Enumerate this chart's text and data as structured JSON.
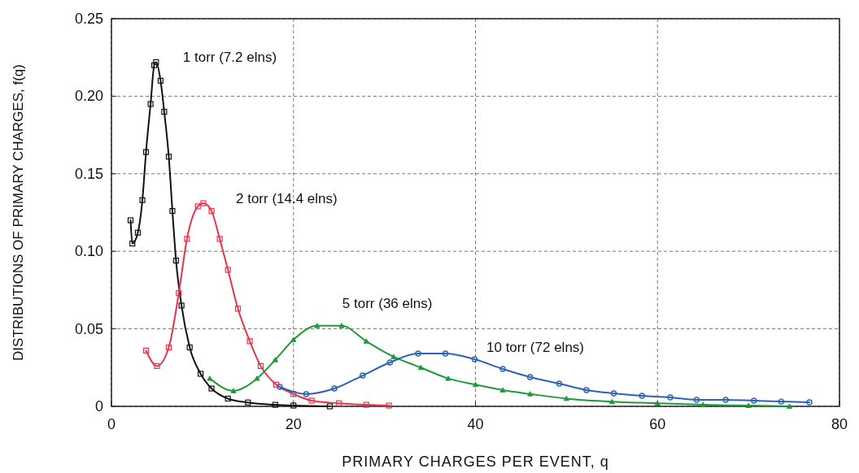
{
  "chart_data": {
    "type": "line",
    "xlabel": "PRIMARY CHARGES PER EVENT, q",
    "ylabel": "DISTRIBUTIONS OF PRIMARY CHARGES, f(q)",
    "xlim": [
      0,
      80
    ],
    "xticks": [
      0,
      20,
      40,
      60,
      80
    ],
    "ylim": [
      0,
      0.25
    ],
    "yticks": [
      0,
      0.05,
      {
        "value": 0.1,
        "label": "0.10"
      },
      0.15,
      {
        "value": 0.2,
        "label": "0.20"
      },
      0.25
    ],
    "grid": true,
    "series": [
      {
        "name": "1 torr (7.2 elns)",
        "color": "#111111",
        "marker": "square",
        "x": [
          2.1,
          2.3,
          2.9,
          3.4,
          3.8,
          4.3,
          4.7,
          4.9,
          5.4,
          5.8,
          6.3,
          6.7,
          7.1,
          7.7,
          8.6,
          9.8,
          11,
          12.8,
          15,
          18,
          20,
          24
        ],
        "values": [
          0.12,
          0.105,
          0.112,
          0.133,
          0.164,
          0.195,
          0.22,
          0.222,
          0.21,
          0.19,
          0.161,
          0.126,
          0.094,
          0.065,
          0.038,
          0.021,
          0.0115,
          0.005,
          0.0025,
          0.001,
          0.0005,
          0
        ]
      },
      {
        "name": "2 torr (14.4 elns)",
        "color": "#e8334a",
        "marker": "square",
        "x": [
          3.8,
          5,
          6.3,
          7.4,
          8.3,
          9.5,
          10.1,
          11,
          11.9,
          12.8,
          13.9,
          15.2,
          16.4,
          18.1,
          20,
          22,
          25,
          28,
          30.5
        ],
        "values": [
          0.036,
          0.026,
          0.038,
          0.073,
          0.108,
          0.129,
          0.131,
          0.126,
          0.108,
          0.088,
          0.063,
          0.042,
          0.026,
          0.014,
          0.008,
          0.0037,
          0.002,
          0.001,
          0.0005
        ]
      },
      {
        "name": "5 torr (36 elns)",
        "color": "#1f9a3a",
        "marker": "triangle",
        "x": [
          10.8,
          13.4,
          16,
          18,
          20,
          22.6,
          25.3,
          28,
          31,
          34,
          37,
          40,
          43,
          46,
          50,
          55,
          60,
          65,
          70,
          74.5
        ],
        "values": [
          0.018,
          0.01,
          0.018,
          0.03,
          0.043,
          0.052,
          0.052,
          0.042,
          0.032,
          0.025,
          0.018,
          0.014,
          0.0105,
          0.008,
          0.005,
          0.003,
          0.002,
          0.001,
          0.0005,
          0
        ]
      },
      {
        "name": "10 torr (72 elns)",
        "color": "#2a62b8",
        "marker": "circle",
        "x": [
          18.5,
          21.4,
          24.5,
          27.6,
          30.6,
          33.7,
          36.7,
          39.9,
          43,
          46,
          49.2,
          52.2,
          55.2,
          58.3,
          61.4,
          64.3,
          67.5,
          70.6,
          73.6,
          76.7
        ],
        "values": [
          0.0126,
          0.0079,
          0.0115,
          0.0199,
          0.0283,
          0.0341,
          0.0341,
          0.0304,
          0.0241,
          0.0189,
          0.0147,
          0.0105,
          0.0084,
          0.0068,
          0.0058,
          0.0042,
          0.0042,
          0.0037,
          0.0031,
          0.0026
        ]
      }
    ]
  }
}
